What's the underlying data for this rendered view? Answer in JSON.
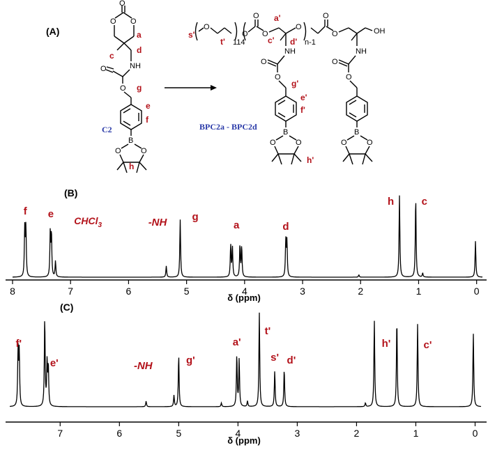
{
  "scheme": {
    "panel_label": "(A)",
    "monomer_name": "C2",
    "polymer_name": "BPC2a - BPC2d",
    "monomer_atom_labels": [
      "a",
      "c",
      "d",
      "g",
      "e",
      "f",
      "h"
    ],
    "polymer_atom_labels": [
      "s'",
      "t'",
      "a'",
      "c'",
      "d'",
      "g'",
      "e'",
      "f'",
      "h'"
    ],
    "repeat_peg": "114",
    "repeat_n": "n-1",
    "groups": {
      "nh": "NH",
      "oh": "OH",
      "o": "O",
      "b": "B"
    }
  },
  "chart_data": [
    {
      "type": "line",
      "panel": "(B)",
      "xlabel": "δ (ppm)",
      "x_ticks": [
        "8",
        "7",
        "6",
        "5",
        "4",
        "3",
        "2",
        "1",
        "0"
      ],
      "xlim": [
        8,
        -0.1
      ],
      "reversed_x": true,
      "peaks": [
        {
          "x": 7.79,
          "h": 0.6
        },
        {
          "x": 7.77,
          "h": 0.62
        },
        {
          "x": 7.35,
          "h": 0.55
        },
        {
          "x": 7.33,
          "h": 0.54
        },
        {
          "x": 7.26,
          "h": 0.2
        },
        {
          "x": 5.35,
          "h": 0.14
        },
        {
          "x": 5.11,
          "h": 0.72
        },
        {
          "x": 4.24,
          "h": 0.4
        },
        {
          "x": 4.21,
          "h": 0.38
        },
        {
          "x": 4.08,
          "h": 0.4
        },
        {
          "x": 4.05,
          "h": 0.38
        },
        {
          "x": 3.29,
          "h": 0.45
        },
        {
          "x": 3.27,
          "h": 0.44
        },
        {
          "x": 2.03,
          "h": 0.03
        },
        {
          "x": 1.33,
          "h": 1.02
        },
        {
          "x": 1.05,
          "h": 1.0
        },
        {
          "x": 0.93,
          "h": 0.05
        },
        {
          "x": 0.02,
          "h": 0.45
        }
      ],
      "annotations": [
        {
          "text": "f",
          "x": 7.78
        },
        {
          "text": "e",
          "x": 7.34
        },
        {
          "text": "CHCl3",
          "x": 6.7
        },
        {
          "text": "-NH",
          "x": 5.5
        },
        {
          "text": "g",
          "x": 4.85
        },
        {
          "text": "a",
          "x": 4.14
        },
        {
          "text": "d",
          "x": 3.29
        },
        {
          "text": "h",
          "x": 1.48
        },
        {
          "text": "c",
          "x": 0.9
        }
      ]
    },
    {
      "type": "line",
      "panel": "(C)",
      "xlabel": "δ (ppm)",
      "x_ticks": [
        "7",
        "6",
        "5",
        "4",
        "3",
        "2",
        "1",
        "0"
      ],
      "xlim": [
        7.85,
        -0.1
      ],
      "reversed_x": true,
      "peaks": [
        {
          "x": 7.71,
          "h": 0.6
        },
        {
          "x": 7.69,
          "h": 0.58
        },
        {
          "x": 7.26,
          "h": 0.94
        },
        {
          "x": 7.22,
          "h": 0.45
        },
        {
          "x": 7.2,
          "h": 0.42
        },
        {
          "x": 5.55,
          "h": 0.06
        },
        {
          "x": 5.08,
          "h": 0.12
        },
        {
          "x": 5.0,
          "h": 0.55
        },
        {
          "x": 4.28,
          "h": 0.04
        },
        {
          "x": 4.02,
          "h": 0.55
        },
        {
          "x": 3.98,
          "h": 0.5
        },
        {
          "x": 3.84,
          "h": 0.06
        },
        {
          "x": 3.64,
          "h": 1.0
        },
        {
          "x": 3.38,
          "h": 0.38
        },
        {
          "x": 3.22,
          "h": 0.4
        },
        {
          "x": 1.85,
          "h": 0.04
        },
        {
          "x": 1.7,
          "h": 0.92
        },
        {
          "x": 1.32,
          "h": 0.94
        },
        {
          "x": 0.97,
          "h": 0.88
        },
        {
          "x": 0.03,
          "h": 0.78
        }
      ],
      "annotations": [
        {
          "text": "f'",
          "x": 7.7
        },
        {
          "text": "e'",
          "x": 7.1
        },
        {
          "text": "-NH",
          "x": 5.6
        },
        {
          "text": "g'",
          "x": 4.8
        },
        {
          "text": "a'",
          "x": 4.02
        },
        {
          "text": "t'",
          "x": 3.5
        },
        {
          "text": "s'",
          "x": 3.38
        },
        {
          "text": "d'",
          "x": 3.1
        },
        {
          "text": "h'",
          "x": 1.5
        },
        {
          "text": "c'",
          "x": 0.8
        }
      ]
    }
  ]
}
